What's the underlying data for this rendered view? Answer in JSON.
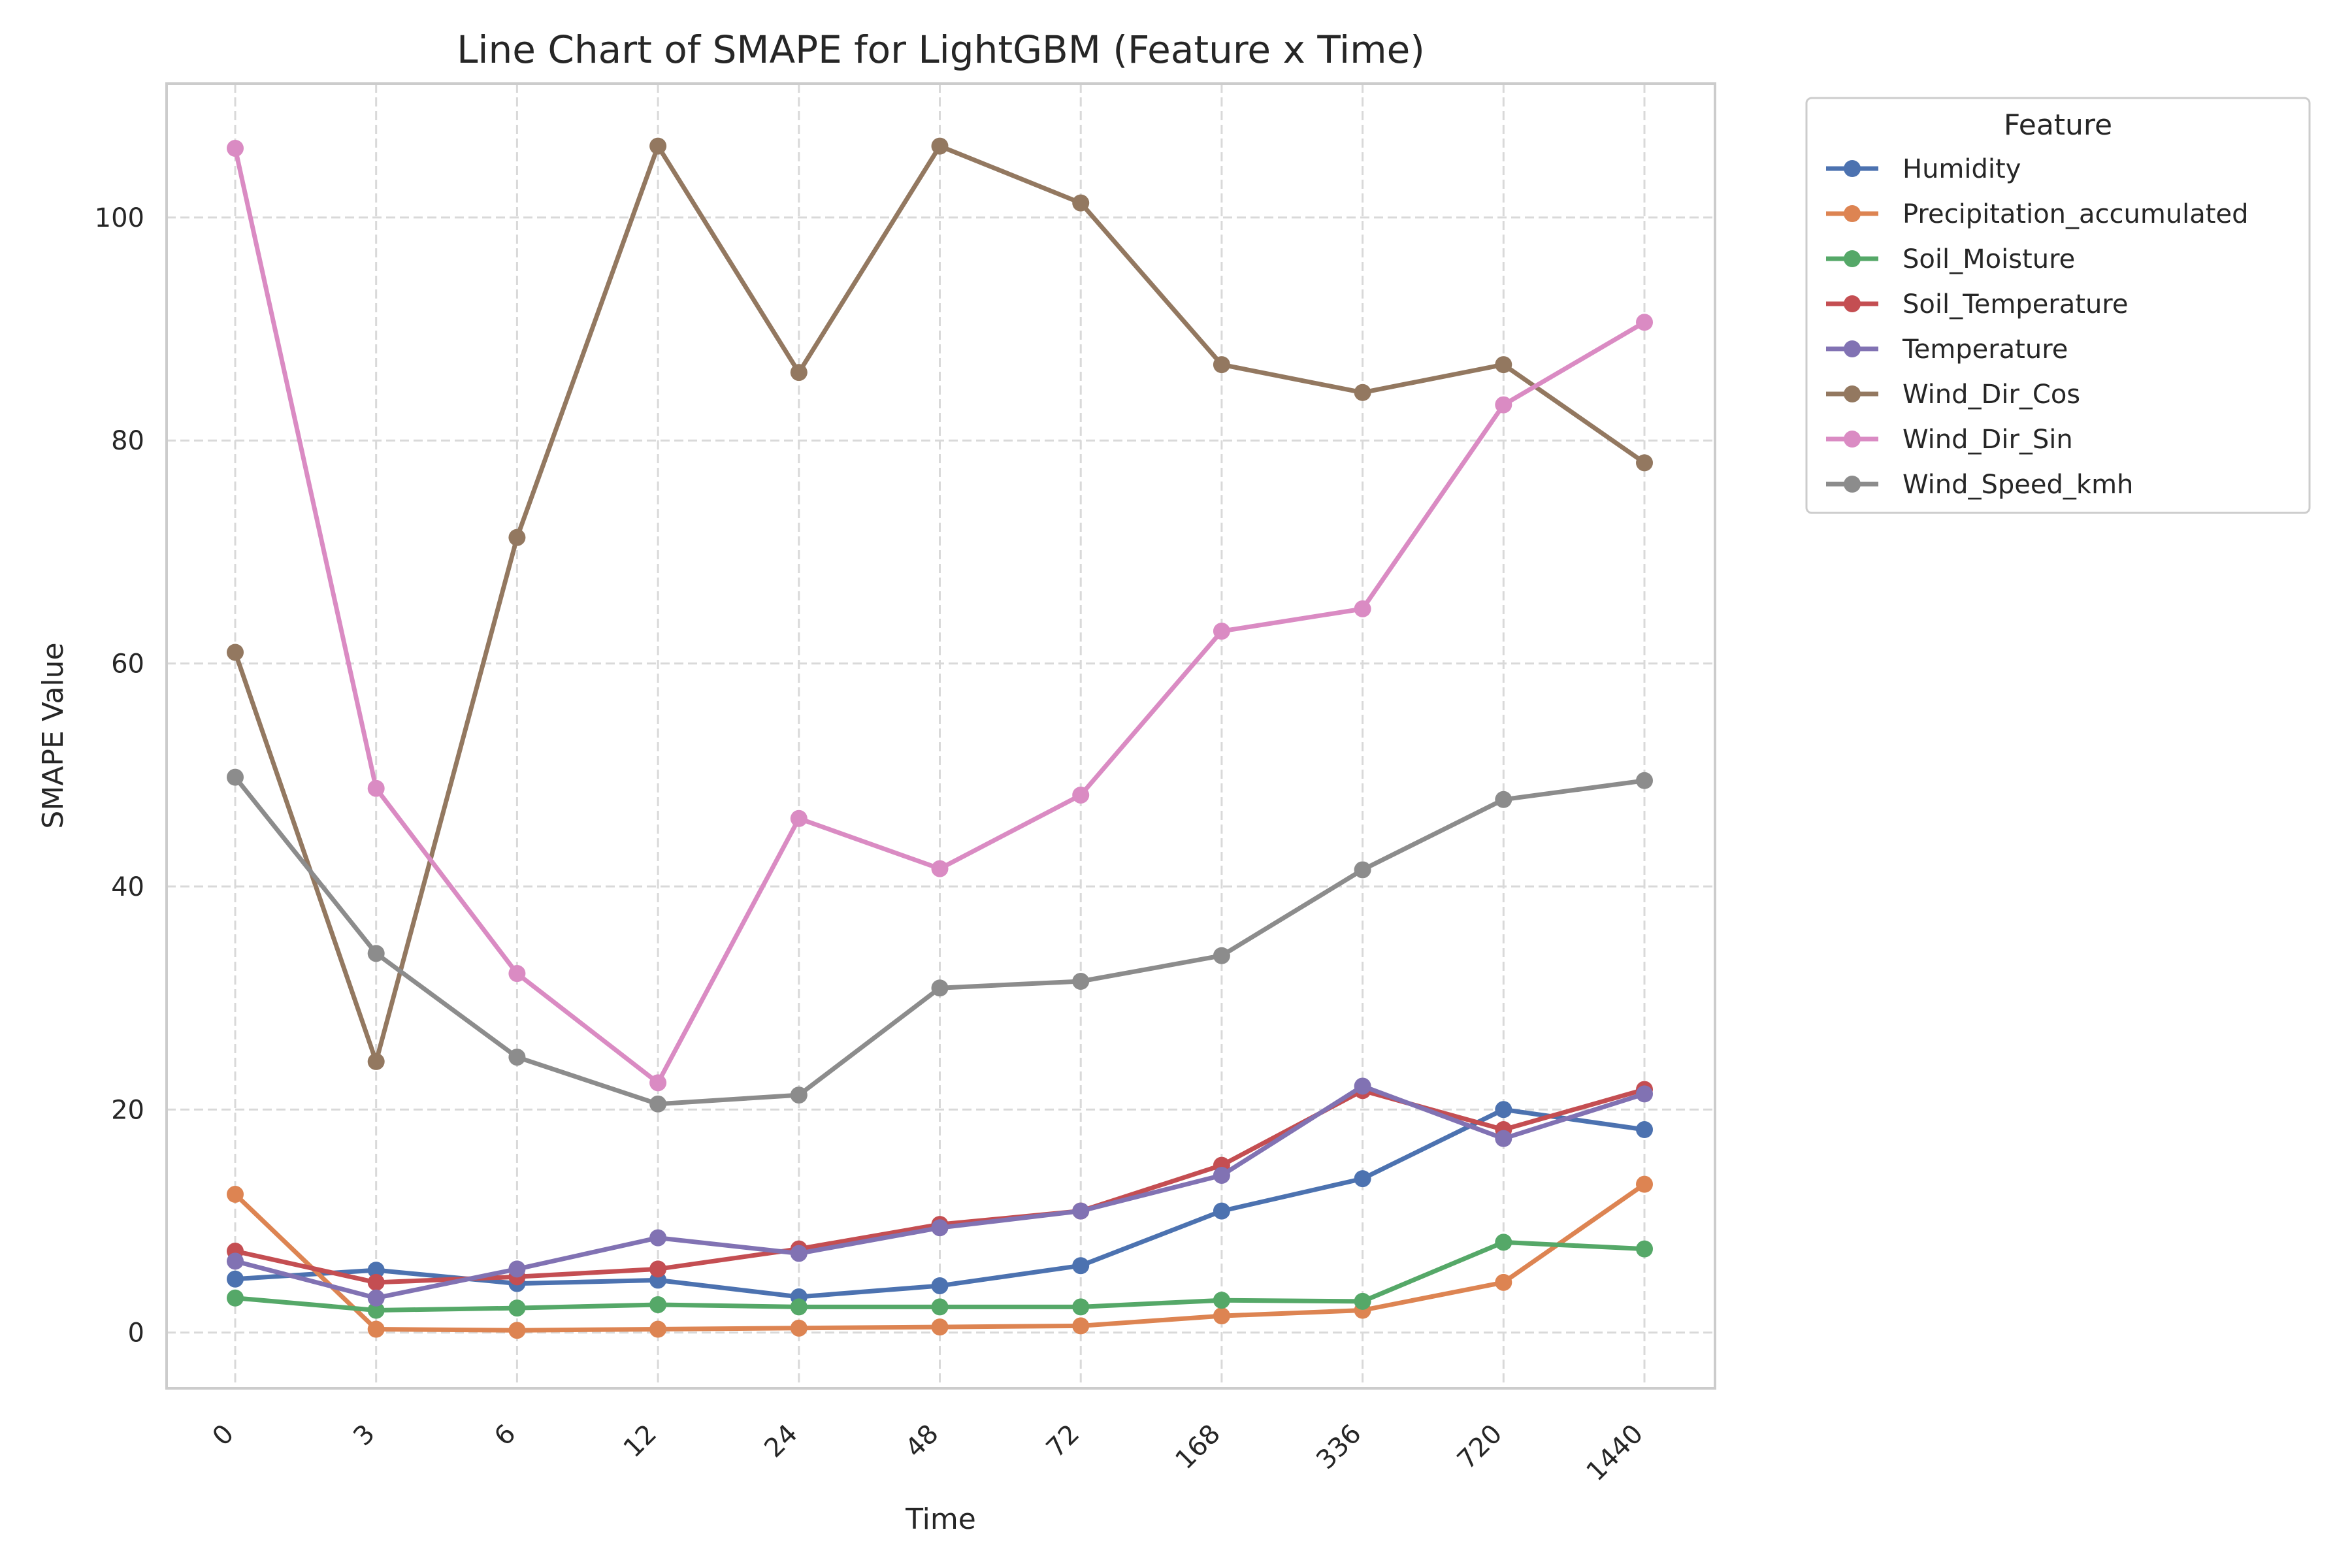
{
  "chart_data": {
    "type": "line",
    "title": "Line Chart of SMAPE for LightGBM (Feature x Time)",
    "xlabel": "Time",
    "ylabel": "SMAPE Value",
    "categories": [
      "0",
      "3",
      "6",
      "12",
      "24",
      "48",
      "72",
      "168",
      "336",
      "720",
      "1440"
    ],
    "ylim": [
      -5,
      112
    ],
    "yticks": [
      0,
      20,
      40,
      60,
      80,
      100
    ],
    "grid": true,
    "legend_title": "Feature",
    "legend_position": "outside-top-right",
    "series": [
      {
        "name": "Humidity",
        "color": "#4c72b0",
        "values": [
          4.8,
          5.6,
          4.4,
          4.7,
          3.2,
          4.2,
          6.0,
          10.9,
          13.8,
          20.0,
          18.2
        ]
      },
      {
        "name": "Precipitation_accumulated",
        "color": "#dd8452",
        "values": [
          12.4,
          0.3,
          0.2,
          0.3,
          0.4,
          0.5,
          0.6,
          1.5,
          2.0,
          4.5,
          13.3
        ]
      },
      {
        "name": "Soil_Moisture",
        "color": "#55a868",
        "values": [
          3.1,
          2.0,
          2.2,
          2.5,
          2.3,
          2.3,
          2.3,
          2.9,
          2.8,
          8.1,
          7.5
        ]
      },
      {
        "name": "Soil_Temperature",
        "color": "#c44e52",
        "values": [
          7.3,
          4.5,
          5.0,
          5.7,
          7.5,
          9.7,
          10.9,
          15.0,
          21.7,
          18.2,
          21.8
        ]
      },
      {
        "name": "Temperature",
        "color": "#8172b3",
        "values": [
          6.4,
          3.1,
          5.7,
          8.5,
          7.1,
          9.4,
          10.9,
          14.1,
          22.1,
          17.4,
          21.4
        ]
      },
      {
        "name": "Wind_Dir_Cos",
        "color": "#937860",
        "values": [
          61.0,
          24.3,
          71.3,
          106.4,
          86.1,
          106.4,
          101.3,
          86.8,
          84.3,
          86.8,
          78.0
        ]
      },
      {
        "name": "Wind_Dir_Sin",
        "color": "#da8bc3",
        "values": [
          106.2,
          48.8,
          32.2,
          22.4,
          46.1,
          41.6,
          48.2,
          62.9,
          64.9,
          83.2,
          90.6
        ]
      },
      {
        "name": "Wind_Speed_kmh",
        "color": "#8c8c8c",
        "values": [
          49.8,
          34.0,
          24.7,
          20.5,
          21.3,
          30.9,
          31.5,
          33.8,
          41.5,
          47.8,
          49.5
        ]
      }
    ]
  }
}
